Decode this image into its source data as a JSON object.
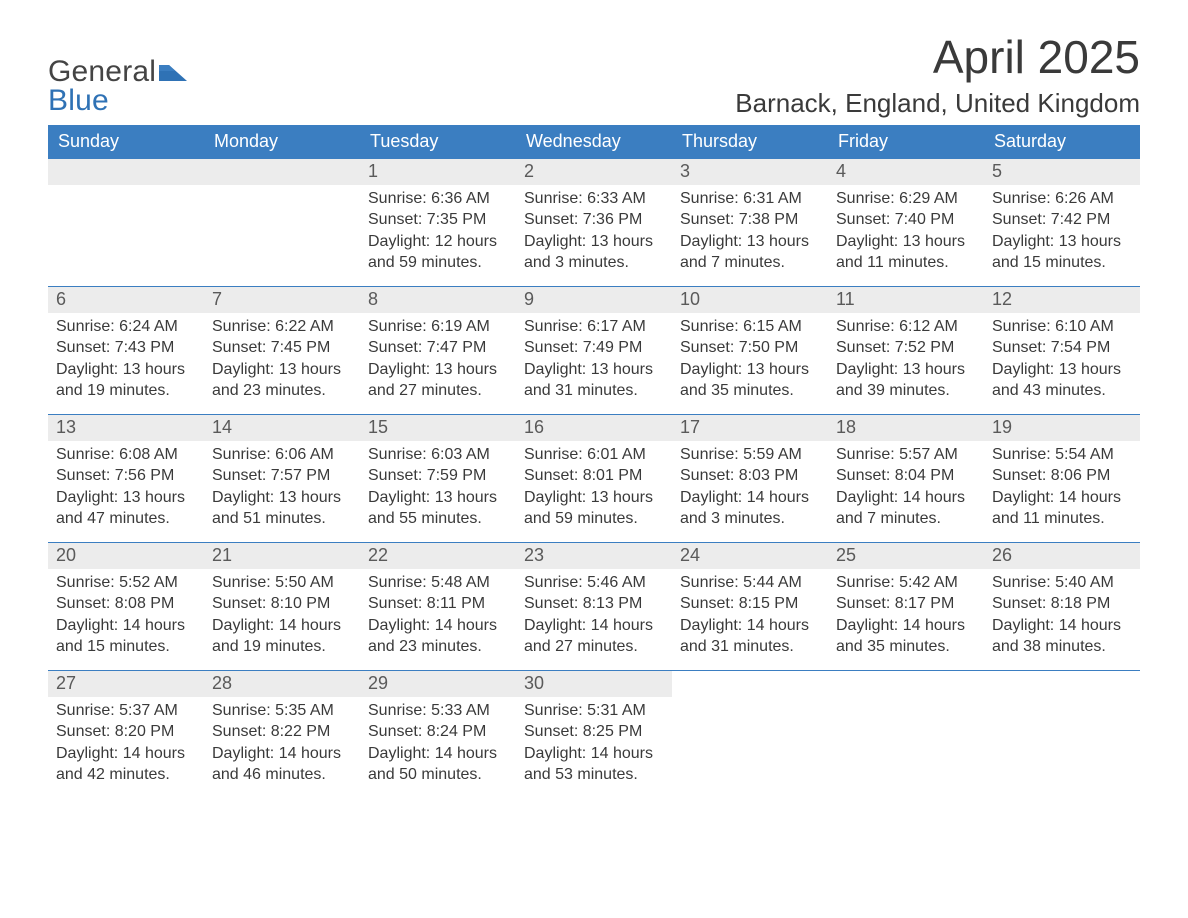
{
  "logo": {
    "word1": "General",
    "word2": "Blue"
  },
  "title": "April 2025",
  "location": "Barnack, England, United Kingdom",
  "colors": {
    "header_blue": "#3b7ec1",
    "daynum_bg": "#ececec",
    "daynum_text": "#5a5a5a",
    "body_text": "#3a3a3a",
    "background": "#ffffff"
  },
  "typography": {
    "title_fontsize": 46,
    "location_fontsize": 26,
    "header_fontsize": 18,
    "daynum_fontsize": 18,
    "body_fontsize": 16,
    "font_family": "Segoe UI"
  },
  "layout": {
    "cols": 7,
    "rows": 5,
    "start_weekday": "Sunday",
    "first_day_col": 2
  },
  "weekdays": [
    "Sunday",
    "Monday",
    "Tuesday",
    "Wednesday",
    "Thursday",
    "Friday",
    "Saturday"
  ],
  "days": [
    {
      "n": 1,
      "sunrise": "6:36 AM",
      "sunset": "7:35 PM",
      "daylight": "12 hours and 59 minutes."
    },
    {
      "n": 2,
      "sunrise": "6:33 AM",
      "sunset": "7:36 PM",
      "daylight": "13 hours and 3 minutes."
    },
    {
      "n": 3,
      "sunrise": "6:31 AM",
      "sunset": "7:38 PM",
      "daylight": "13 hours and 7 minutes."
    },
    {
      "n": 4,
      "sunrise": "6:29 AM",
      "sunset": "7:40 PM",
      "daylight": "13 hours and 11 minutes."
    },
    {
      "n": 5,
      "sunrise": "6:26 AM",
      "sunset": "7:42 PM",
      "daylight": "13 hours and 15 minutes."
    },
    {
      "n": 6,
      "sunrise": "6:24 AM",
      "sunset": "7:43 PM",
      "daylight": "13 hours and 19 minutes."
    },
    {
      "n": 7,
      "sunrise": "6:22 AM",
      "sunset": "7:45 PM",
      "daylight": "13 hours and 23 minutes."
    },
    {
      "n": 8,
      "sunrise": "6:19 AM",
      "sunset": "7:47 PM",
      "daylight": "13 hours and 27 minutes."
    },
    {
      "n": 9,
      "sunrise": "6:17 AM",
      "sunset": "7:49 PM",
      "daylight": "13 hours and 31 minutes."
    },
    {
      "n": 10,
      "sunrise": "6:15 AM",
      "sunset": "7:50 PM",
      "daylight": "13 hours and 35 minutes."
    },
    {
      "n": 11,
      "sunrise": "6:12 AM",
      "sunset": "7:52 PM",
      "daylight": "13 hours and 39 minutes."
    },
    {
      "n": 12,
      "sunrise": "6:10 AM",
      "sunset": "7:54 PM",
      "daylight": "13 hours and 43 minutes."
    },
    {
      "n": 13,
      "sunrise": "6:08 AM",
      "sunset": "7:56 PM",
      "daylight": "13 hours and 47 minutes."
    },
    {
      "n": 14,
      "sunrise": "6:06 AM",
      "sunset": "7:57 PM",
      "daylight": "13 hours and 51 minutes."
    },
    {
      "n": 15,
      "sunrise": "6:03 AM",
      "sunset": "7:59 PM",
      "daylight": "13 hours and 55 minutes."
    },
    {
      "n": 16,
      "sunrise": "6:01 AM",
      "sunset": "8:01 PM",
      "daylight": "13 hours and 59 minutes."
    },
    {
      "n": 17,
      "sunrise": "5:59 AM",
      "sunset": "8:03 PM",
      "daylight": "14 hours and 3 minutes."
    },
    {
      "n": 18,
      "sunrise": "5:57 AM",
      "sunset": "8:04 PM",
      "daylight": "14 hours and 7 minutes."
    },
    {
      "n": 19,
      "sunrise": "5:54 AM",
      "sunset": "8:06 PM",
      "daylight": "14 hours and 11 minutes."
    },
    {
      "n": 20,
      "sunrise": "5:52 AM",
      "sunset": "8:08 PM",
      "daylight": "14 hours and 15 minutes."
    },
    {
      "n": 21,
      "sunrise": "5:50 AM",
      "sunset": "8:10 PM",
      "daylight": "14 hours and 19 minutes."
    },
    {
      "n": 22,
      "sunrise": "5:48 AM",
      "sunset": "8:11 PM",
      "daylight": "14 hours and 23 minutes."
    },
    {
      "n": 23,
      "sunrise": "5:46 AM",
      "sunset": "8:13 PM",
      "daylight": "14 hours and 27 minutes."
    },
    {
      "n": 24,
      "sunrise": "5:44 AM",
      "sunset": "8:15 PM",
      "daylight": "14 hours and 31 minutes."
    },
    {
      "n": 25,
      "sunrise": "5:42 AM",
      "sunset": "8:17 PM",
      "daylight": "14 hours and 35 minutes."
    },
    {
      "n": 26,
      "sunrise": "5:40 AM",
      "sunset": "8:18 PM",
      "daylight": "14 hours and 38 minutes."
    },
    {
      "n": 27,
      "sunrise": "5:37 AM",
      "sunset": "8:20 PM",
      "daylight": "14 hours and 42 minutes."
    },
    {
      "n": 28,
      "sunrise": "5:35 AM",
      "sunset": "8:22 PM",
      "daylight": "14 hours and 46 minutes."
    },
    {
      "n": 29,
      "sunrise": "5:33 AM",
      "sunset": "8:24 PM",
      "daylight": "14 hours and 50 minutes."
    },
    {
      "n": 30,
      "sunrise": "5:31 AM",
      "sunset": "8:25 PM",
      "daylight": "14 hours and 53 minutes."
    }
  ],
  "labels": {
    "sunrise": "Sunrise: ",
    "sunset": "Sunset: ",
    "daylight": "Daylight: "
  }
}
